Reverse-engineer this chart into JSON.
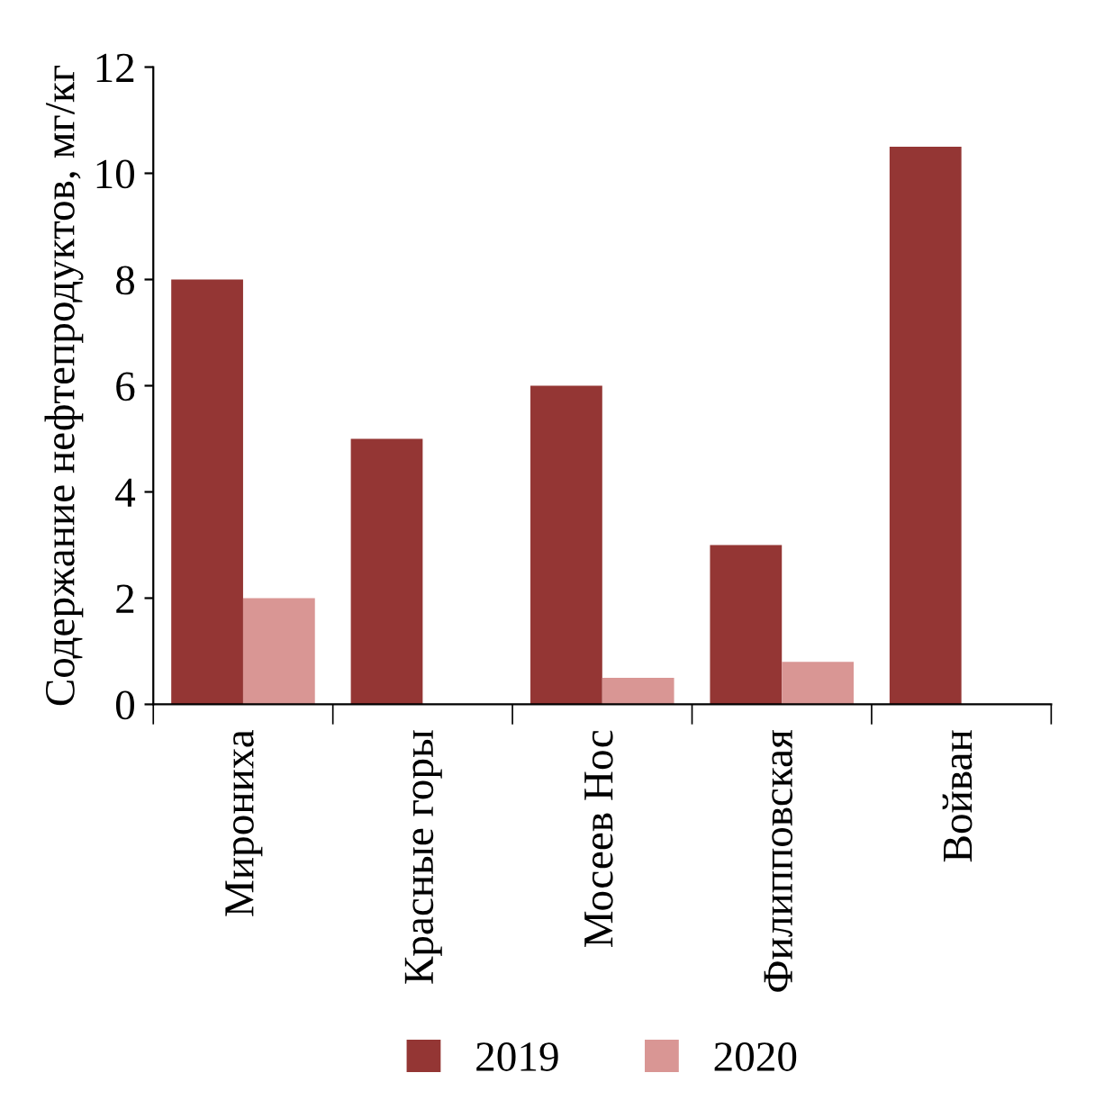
{
  "chart_data": {
    "type": "bar",
    "ylabel": "Содержание нефтепродуктов, мг/кг",
    "categories": [
      "Мирониха",
      "Красные горы",
      "Мосеев Нос",
      "Филипповская",
      "Войван"
    ],
    "series": [
      {
        "name": "2019",
        "color": "#943634",
        "values": [
          8,
          5,
          6,
          3,
          10.5
        ]
      },
      {
        "name": "2020",
        "color": "#d99694",
        "values": [
          2,
          null,
          0.5,
          0.8,
          null
        ]
      }
    ],
    "ylim": [
      0,
      12
    ],
    "yticks": [
      0,
      2,
      4,
      6,
      8,
      10,
      12
    ],
    "grid": false,
    "legend": "bottom"
  }
}
